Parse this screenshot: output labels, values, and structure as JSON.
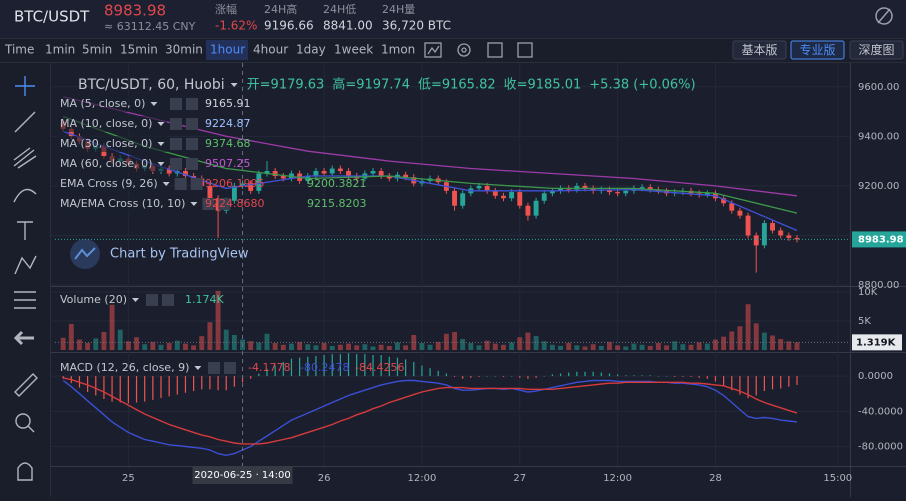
{
  "header": {
    "symbol": "BTC/USDT",
    "price": "8983.98",
    "cny": "≈ 63112.45 CNY",
    "stats": [
      {
        "label": "涨幅",
        "value": "-1.62%"
      },
      {
        "label": "24H高",
        "value": "9196.66"
      },
      {
        "label": "24H低",
        "value": "8841.00"
      },
      {
        "label": "24H量",
        "value": "36,720 BTC"
      }
    ]
  },
  "toolbar": {
    "intervals": [
      "Time",
      "1min",
      "5min",
      "15min",
      "30min",
      "1hour",
      "4hour",
      "1day",
      "1week",
      "1mon"
    ],
    "active_interval": 5,
    "versions": [
      "基本版",
      "专业版",
      "深度图"
    ],
    "active_version": 1
  },
  "chart_data": {
    "type": "candlestick",
    "symbol_legend": "BTC/USDT, 60, Huobi",
    "ohlc_legend": [
      "开=9179.63",
      "高=9197.74",
      "低=9165.82",
      "收=9185.01",
      "+5.38 (+0.06%)"
    ],
    "watermark": "Chart by TradingView",
    "up_color": "#26a69a",
    "down_color": "#ef5350",
    "xlim": [
      -1,
      96.5
    ],
    "xticks": [
      {
        "value": 8,
        "label": "25"
      },
      {
        "value": 32,
        "label": "26"
      },
      {
        "value": 44,
        "label": "12:00"
      },
      {
        "value": 56,
        "label": "27"
      },
      {
        "value": 68,
        "label": "12:00"
      },
      {
        "value": 80,
        "label": "28"
      },
      {
        "value": 95,
        "label": "15:00"
      }
    ],
    "crosshair": {
      "value": 22,
      "label": "2020-06-25 · 14:00"
    },
    "ylim": [
      8800,
      9700
    ],
    "yticks": [
      {
        "value": 8800,
        "label": "8800.00"
      },
      {
        "value": 9000,
        "label": "9000.00"
      },
      {
        "value": 9200,
        "label": "9200.00"
      },
      {
        "value": 9400,
        "label": "9400.00"
      },
      {
        "value": 9600,
        "label": "9600.00"
      }
    ],
    "last_price": 8983.98,
    "open": [
      9460,
      9430,
      9400,
      9380,
      9350,
      9360,
      9320,
      9300,
      9310,
      9290,
      9270,
      9280,
      9260,
      9270,
      9250,
      9260,
      9240,
      9230,
      9200,
      9150,
      9100,
      9140,
      9200,
      9210,
      9180,
      9250,
      9260,
      9240,
      9230,
      9250,
      9220,
      9240,
      9260,
      9250,
      9270,
      9260,
      9240,
      9230,
      9250,
      9260,
      9240,
      9230,
      9245,
      9235,
      9210,
      9220,
      9230,
      9215,
      9180,
      9120,
      9170,
      9190,
      9200,
      9180,
      9160,
      9150,
      9175,
      9120,
      9080,
      9140,
      9170,
      9180,
      9190,
      9185,
      9200,
      9190,
      9180,
      9185,
      9175,
      9170,
      9180,
      9190,
      9195,
      9185,
      9180,
      9170,
      9175,
      9180,
      9170,
      9165,
      9170,
      9150,
      9130,
      9100,
      9080,
      9000,
      8960,
      9050,
      9020,
      9000,
      8990
    ],
    "high": [
      9472,
      9442,
      9412,
      9392,
      9372,
      9372,
      9332,
      9322,
      9322,
      9302,
      9292,
      9292,
      9282,
      9282,
      9272,
      9272,
      9252,
      9242,
      9212,
      9162,
      9152,
      9212,
      9222,
      9222,
      9262,
      9300,
      9272,
      9252,
      9262,
      9262,
      9252,
      9272,
      9272,
      9282,
      9282,
      9272,
      9252,
      9262,
      9272,
      9272,
      9252,
      9257,
      9257,
      9247,
      9232,
      9242,
      9242,
      9227,
      9192,
      9182,
      9202,
      9212,
      9212,
      9192,
      9172,
      9187,
      9187,
      9132,
      9152,
      9182,
      9192,
      9202,
      9202,
      9212,
      9212,
      9202,
      9197,
      9197,
      9187,
      9192,
      9202,
      9207,
      9207,
      9197,
      9192,
      9187,
      9192,
      9192,
      9182,
      9182,
      9182,
      9162,
      9142,
      9112,
      9092,
      9012,
      9062,
      9062,
      9032,
      9012,
      9002
    ],
    "low": [
      9418,
      9388,
      9368,
      9338,
      9338,
      9308,
      9288,
      9288,
      9278,
      9258,
      9258,
      9248,
      9248,
      9238,
      9238,
      9228,
      9218,
      9188,
      9138,
      8990,
      9088,
      9128,
      9188,
      9168,
      9168,
      9238,
      9228,
      9218,
      9218,
      9208,
      9208,
      9228,
      9238,
      9238,
      9248,
      9228,
      9218,
      9218,
      9238,
      9228,
      9218,
      9218,
      9223,
      9198,
      9198,
      9208,
      9203,
      9168,
      9100,
      9108,
      9158,
      9178,
      9168,
      9148,
      9138,
      9138,
      9108,
      9060,
      9068,
      9128,
      9158,
      9168,
      9173,
      9173,
      9178,
      9168,
      9168,
      9163,
      9158,
      9158,
      9168,
      9178,
      9173,
      9168,
      9158,
      9158,
      9163,
      9158,
      9153,
      9153,
      9138,
      9118,
      9088,
      9068,
      8988,
      8850,
      8948,
      9008,
      8988,
      8978,
      8972
    ],
    "close": [
      9430,
      9400,
      9380,
      9350,
      9360,
      9320,
      9300,
      9310,
      9290,
      9270,
      9280,
      9260,
      9270,
      9250,
      9260,
      9240,
      9230,
      9200,
      9150,
      9100,
      9140,
      9200,
      9210,
      9180,
      9250,
      9260,
      9240,
      9230,
      9250,
      9220,
      9240,
      9260,
      9250,
      9270,
      9260,
      9240,
      9230,
      9250,
      9260,
      9240,
      9230,
      9245,
      9235,
      9210,
      9220,
      9230,
      9215,
      9180,
      9120,
      9170,
      9190,
      9200,
      9180,
      9160,
      9150,
      9175,
      9120,
      9080,
      9140,
      9170,
      9180,
      9190,
      9185,
      9200,
      9190,
      9180,
      9185,
      9175,
      9170,
      9180,
      9190,
      9195,
      9185,
      9180,
      9170,
      9175,
      9180,
      9170,
      9165,
      9170,
      9150,
      9130,
      9100,
      9080,
      9000,
      8960,
      9050,
      9020,
      9000,
      8990,
      8984
    ],
    "studies": [
      {
        "name": "MA (5, close, 0)",
        "legend_values": [
          "9165.91"
        ],
        "legend_colors": [
          "#d1d4dc"
        ]
      },
      {
        "name": "MA (10, close, 0)",
        "legend_values": [
          "9224.87"
        ],
        "legend_colors": [
          "#9ec1ff"
        ],
        "color": "#3f51d8",
        "x": [
          0,
          10,
          20,
          30,
          40,
          50,
          60,
          70,
          80,
          90
        ],
        "values": [
          9420,
          9300,
          9190,
          9240,
          9240,
          9180,
          9180,
          9185,
          9160,
          9020
        ]
      },
      {
        "name": "MA (30, close, 0)",
        "legend_values": [
          "9374.68"
        ],
        "legend_colors": [
          "#5fbf6a"
        ],
        "color": "#3c9a4a",
        "x": [
          0,
          10,
          20,
          30,
          40,
          50,
          60,
          70,
          80,
          90
        ],
        "values": [
          9480,
          9360,
          9270,
          9230,
          9240,
          9210,
          9190,
          9190,
          9170,
          9090
        ]
      },
      {
        "name": "MA (60, close, 0)",
        "legend_values": [
          "9507.25"
        ],
        "legend_colors": [
          "#c45ad3"
        ],
        "color": "#9c3ba8",
        "x": [
          0,
          10,
          20,
          30,
          40,
          50,
          60,
          70,
          80,
          90
        ],
        "values": [
          9560,
          9480,
          9400,
          9340,
          9300,
          9270,
          9250,
          9230,
          9200,
          9160
        ]
      },
      {
        "name": "EMA Cross (9, 26)",
        "legend_values": [
          "9206.1995",
          "9200.3821"
        ],
        "legend_colors": [
          "#e0474c",
          "#5fbf6a"
        ]
      },
      {
        "name": "MA/EMA Cross (10, 10)",
        "legend_values": [
          "9224.8680",
          "9215.8203"
        ],
        "legend_colors": [
          "#e0474c",
          "#5fbf6a"
        ]
      }
    ],
    "volume": {
      "title": "Volume (20)",
      "legend_value": "1.174K",
      "ylim": [
        0,
        10.7
      ],
      "yticks": [
        {
          "value": 5,
          "label": "5K"
        },
        {
          "value": 10,
          "label": "10K"
        }
      ],
      "last": {
        "value": 1.319,
        "label": "1.319K"
      },
      "values": [
        2.1,
        4.5,
        1.8,
        1.2,
        2.0,
        3.1,
        7.8,
        3.5,
        1.5,
        2.2,
        1.0,
        1.4,
        0.9,
        1.2,
        1.6,
        1.1,
        0.8,
        2.4,
        4.8,
        10.2,
        3.5,
        2.6,
        1.8,
        1.5,
        1.3,
        2.8,
        1.2,
        0.9,
        1.1,
        1.4,
        1.0,
        0.8,
        1.2,
        0.7,
        0.9,
        1.1,
        0.8,
        1.0,
        0.6,
        0.9,
        0.7,
        1.3,
        0.8,
        2.6,
        1.2,
        0.9,
        1.4,
        2.8,
        3.1,
        1.9,
        1.2,
        0.8,
        1.6,
        1.1,
        0.9,
        1.3,
        2.2,
        3.0,
        2.4,
        1.5,
        0.9,
        0.7,
        1.2,
        0.8,
        0.6,
        1.0,
        0.7,
        1.4,
        0.8,
        0.6,
        1.1,
        0.9,
        0.7,
        1.2,
        0.8,
        1.5,
        1.0,
        0.9,
        1.3,
        1.1,
        1.8,
        2.3,
        3.2,
        4.1,
        7.9,
        4.6,
        3.0,
        2.5,
        1.9,
        1.5,
        1.319
      ]
    },
    "macd": {
      "title": "MACD (12, 26, close, 9)",
      "legend_values": [
        "-4.1778",
        "-80.2478",
        "-84.4256"
      ],
      "legend_colors": [
        "#e0474c",
        "#3f51d8",
        "#e0474c"
      ],
      "ylim": [
        -101,
        24
      ],
      "yticks": [
        {
          "value": -80,
          "label": "-80.0000"
        },
        {
          "value": -40,
          "label": "-40.0000"
        },
        {
          "value": 0,
          "label": "0.0000"
        }
      ],
      "macd_color": "#3b4fd6",
      "signal_color": "#d63a3a",
      "hist_up_color": "#26a69a",
      "hist_down_color": "#ef5350",
      "histogram": [
        -3,
        -8,
        -13,
        -18,
        -22,
        -26,
        -29,
        -30,
        -31,
        -30,
        -29,
        -27,
        -25,
        -23,
        -21,
        -19,
        -17,
        -15,
        -15,
        -16,
        -16,
        -12,
        -7,
        -3,
        3,
        8,
        12,
        16,
        20,
        21,
        22,
        23,
        24,
        25,
        25,
        26,
        25,
        25,
        24,
        24,
        22,
        21,
        19,
        16,
        12,
        9,
        6,
        3,
        -1,
        -3,
        -2,
        -1,
        0,
        0,
        -1,
        0,
        -2,
        -3,
        -2,
        0,
        2,
        3,
        4,
        5,
        5,
        5,
        4,
        3,
        2,
        1,
        1,
        1,
        1,
        0,
        0,
        -1,
        -1,
        -1,
        -2,
        -3,
        -6,
        -11,
        -16,
        -21,
        -25,
        -22,
        -17,
        -15,
        -14,
        -12,
        -10
      ],
      "macd": [
        -5,
        -12,
        -20,
        -28,
        -36,
        -44,
        -52,
        -58,
        -64,
        -68,
        -72,
        -74,
        -76,
        -78,
        -79,
        -80,
        -81,
        -82,
        -84,
        -88,
        -90,
        -88,
        -84,
        -80,
        -74,
        -68,
        -62,
        -56,
        -50,
        -46,
        -42,
        -38,
        -34,
        -30,
        -26,
        -22,
        -19,
        -16,
        -13,
        -10,
        -8,
        -6,
        -5,
        -5,
        -6,
        -7,
        -8,
        -10,
        -14,
        -16,
        -16,
        -15,
        -14,
        -14,
        -15,
        -14,
        -16,
        -18,
        -17,
        -15,
        -13,
        -11,
        -9,
        -7,
        -6,
        -5,
        -5,
        -5,
        -6,
        -6,
        -6,
        -6,
        -6,
        -7,
        -7,
        -8,
        -8,
        -9,
        -10,
        -12,
        -16,
        -22,
        -30,
        -38,
        -46,
        -48,
        -47,
        -48,
        -50,
        -51,
        -52
      ],
      "signal": [
        -2,
        -4,
        -7,
        -10,
        -14,
        -18,
        -23,
        -28,
        -33,
        -38,
        -43,
        -47,
        -51,
        -55,
        -58,
        -61,
        -64,
        -67,
        -69,
        -72,
        -74,
        -76,
        -77,
        -77,
        -77,
        -76,
        -74,
        -72,
        -70,
        -67,
        -64,
        -61,
        -58,
        -55,
        -51,
        -48,
        -44,
        -41,
        -37,
        -34,
        -30,
        -27,
        -24,
        -21,
        -18,
        -16,
        -14,
        -13,
        -13,
        -13,
        -14,
        -14,
        -14,
        -14,
        -14,
        -14,
        -14,
        -15,
        -15,
        -15,
        -15,
        -14,
        -13,
        -12,
        -11,
        -10,
        -9,
        -8,
        -8,
        -7,
        -7,
        -7,
        -7,
        -7,
        -7,
        -7,
        -7,
        -8,
        -8,
        -9,
        -10,
        -11,
        -14,
        -17,
        -21,
        -26,
        -30,
        -33,
        -36,
        -39,
        -42
      ]
    }
  }
}
